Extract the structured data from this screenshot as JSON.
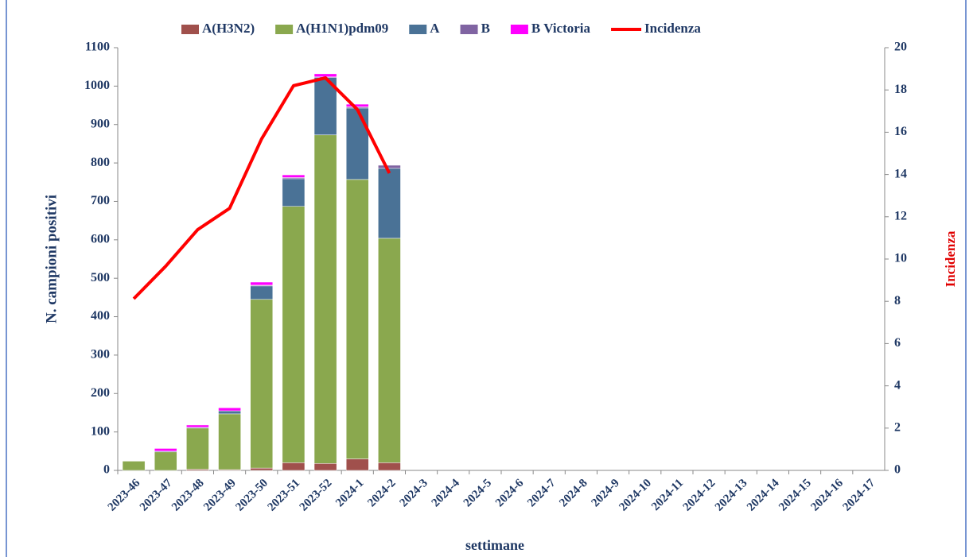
{
  "chart_data": {
    "type": "bar",
    "stacked": true,
    "x_label": "settimane",
    "y_label": "N. campioni positivi",
    "y2_label": "Incidenza",
    "categories": [
      "2023-46",
      "2023-47",
      "2023-48",
      "2023-49",
      "2023-50",
      "2023-51",
      "2023-52",
      "2024-1",
      "2024-2",
      "2024-3",
      "2024-4",
      "2024-5",
      "2024-6",
      "2024-7",
      "2024-8",
      "2024-9",
      "2024-10",
      "2024-11",
      "2024-12",
      "2024-13",
      "2024-14",
      "2024-15",
      "2024-16",
      "2024-17"
    ],
    "series": [
      {
        "name": "A(H3N2)",
        "color": "#a0504c",
        "values": [
          0,
          0,
          3,
          2,
          6,
          20,
          18,
          30,
          20,
          null,
          null,
          null,
          null,
          null,
          null,
          null,
          null,
          null,
          null,
          null,
          null,
          null,
          null,
          null
        ]
      },
      {
        "name": "A(H1N1)pdm09",
        "color": "#8aa84e",
        "values": [
          24,
          48,
          107,
          145,
          439,
          667,
          855,
          727,
          584,
          null,
          null,
          null,
          null,
          null,
          null,
          null,
          null,
          null,
          null,
          null,
          null,
          null,
          null,
          null
        ]
      },
      {
        "name": "A",
        "color": "#4a7296",
        "values": [
          0,
          2,
          2,
          8,
          35,
          72,
          149,
          186,
          182,
          null,
          null,
          null,
          null,
          null,
          null,
          null,
          null,
          null,
          null,
          null,
          null,
          null,
          null,
          null
        ]
      },
      {
        "name": "B",
        "color": "#8064a2",
        "values": [
          0,
          0,
          0,
          0,
          2,
          3,
          2,
          3,
          8,
          null,
          null,
          null,
          null,
          null,
          null,
          null,
          null,
          null,
          null,
          null,
          null,
          null,
          null,
          null
        ]
      },
      {
        "name": "B Victoria",
        "color": "#ff00ff",
        "values": [
          0,
          7,
          6,
          8,
          8,
          7,
          8,
          7,
          0,
          null,
          null,
          null,
          null,
          null,
          null,
          null,
          null,
          null,
          null,
          null,
          null,
          null,
          null,
          null
        ]
      },
      {
        "name": "Incidenza",
        "type": "line",
        "axis": "y2",
        "color": "#ff0000",
        "values": [
          8.12,
          9.66,
          11.39,
          12.4,
          15.68,
          18.2,
          18.57,
          17.07,
          14.06,
          null,
          null,
          null,
          null,
          null,
          null,
          null,
          null,
          null,
          null,
          null,
          null,
          null,
          null,
          null
        ]
      }
    ],
    "ylim": [
      0,
      1100
    ],
    "yticks": [
      0,
      100,
      200,
      300,
      400,
      500,
      600,
      700,
      800,
      900,
      1000,
      1100
    ],
    "y2lim": [
      0,
      20
    ],
    "y2ticks": [
      0,
      2,
      4,
      6,
      8,
      10,
      12,
      14,
      16,
      18,
      20
    ]
  }
}
